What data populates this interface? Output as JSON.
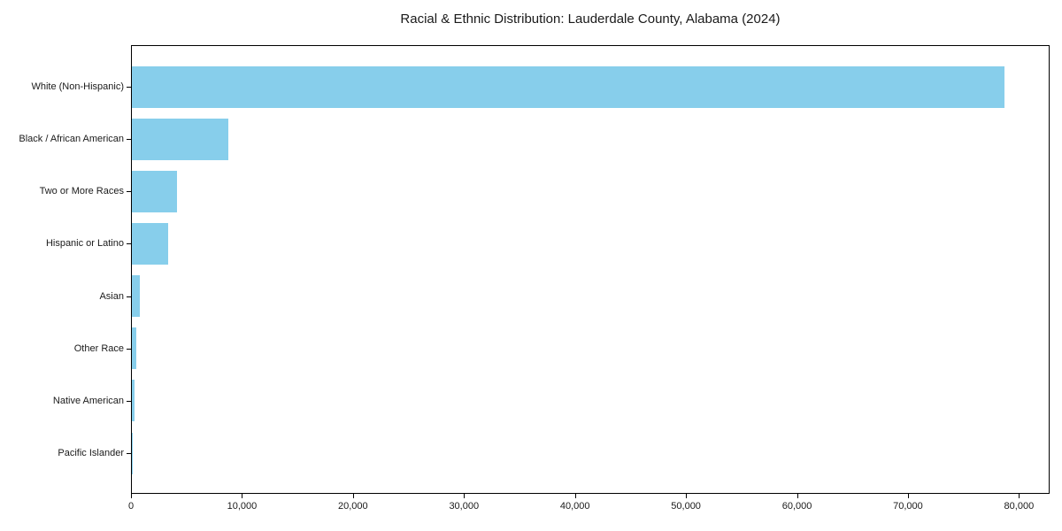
{
  "chart_data": {
    "type": "bar",
    "orientation": "horizontal",
    "title": "Racial & Ethnic Distribution: Lauderdale County, Alabama (2024)",
    "categories": [
      "White (Non-Hispanic)",
      "Black / African American",
      "Two or More Races",
      "Hispanic or Latino",
      "Asian",
      "Other Race",
      "Native American",
      "Pacific Islander"
    ],
    "values": [
      78650,
      8680,
      4060,
      3270,
      720,
      400,
      250,
      50
    ],
    "bar_color": "#87CEEB",
    "xlim": [
      0,
      82600
    ],
    "x_ticks": [
      0,
      10000,
      20000,
      30000,
      40000,
      50000,
      60000,
      70000,
      80000
    ],
    "x_tick_labels": [
      "0",
      "10,000",
      "20,000",
      "30,000",
      "40,000",
      "50,000",
      "60,000",
      "70,000",
      "80,000"
    ],
    "xlabel": "",
    "ylabel": "",
    "grid": false,
    "legend": null,
    "text_color": "#1a1a1a",
    "spine_color": "#000000",
    "background_color": "#ffffff"
  }
}
